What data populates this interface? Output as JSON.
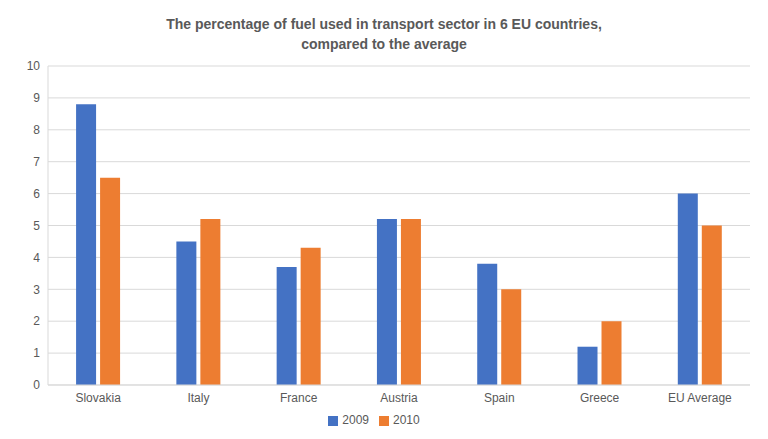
{
  "chart_data": {
    "type": "bar",
    "title": "The percentage of fuel used in transport sector in 6 EU countries,\ncompared to the average",
    "categories": [
      "Slovakia",
      "Italy",
      "France",
      "Austria",
      "Spain",
      "Greece",
      "EU Average"
    ],
    "series": [
      {
        "name": "2009",
        "color": "#4472c4",
        "values": [
          8.8,
          4.5,
          3.7,
          5.2,
          3.8,
          1.2,
          6.0
        ]
      },
      {
        "name": "2010",
        "color": "#ed7d31",
        "values": [
          6.5,
          5.2,
          4.3,
          5.2,
          3.0,
          2.0,
          5.0
        ]
      }
    ],
    "ylim": [
      0,
      10
    ],
    "yticks": [
      0,
      1,
      2,
      3,
      4,
      5,
      6,
      7,
      8,
      9,
      10
    ],
    "grid": true,
    "legend": "bottom"
  }
}
